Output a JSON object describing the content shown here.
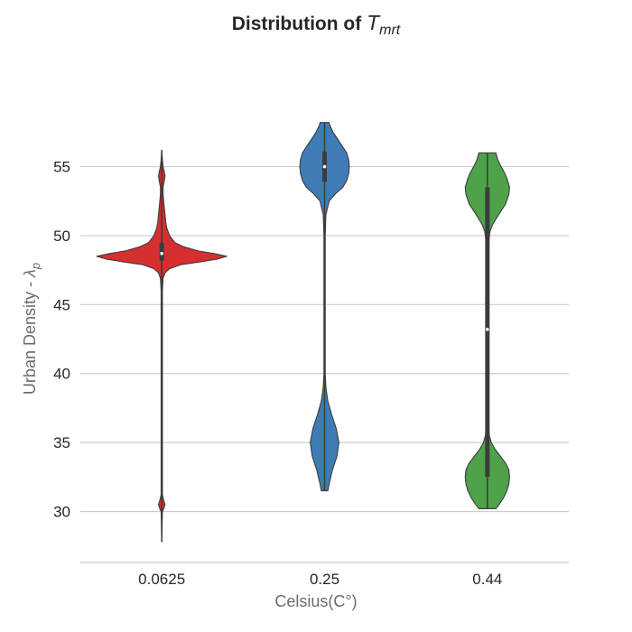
{
  "chart_data": {
    "type": "violin",
    "title_main": "Distribution of ",
    "title_math_base": "T",
    "title_math_sub": "mrt",
    "xlabel": "Celsius(C°)",
    "ylabel_text": "Urban Density - ",
    "ylabel_math_base": "λ",
    "ylabel_math_sub": "p",
    "ylim": [
      26.3,
      62.5
    ],
    "yticks": [
      30,
      35,
      40,
      45,
      50,
      55
    ],
    "grid": "horizontal",
    "categories": [
      "0.0625",
      "0.25",
      "0.44"
    ],
    "colors": [
      "#d62f2f",
      "#3f7cb5",
      "#4ea24a"
    ],
    "violins": [
      {
        "category": "0.0625",
        "range": [
          27.8,
          56.2
        ],
        "profile": [
          [
            27.8,
            0.0
          ],
          [
            30.0,
            0.01
          ],
          [
            30.2,
            0.03
          ],
          [
            30.5,
            0.05
          ],
          [
            30.8,
            0.03
          ],
          [
            31.2,
            0.01
          ],
          [
            34.0,
            0.01
          ],
          [
            46.0,
            0.01
          ],
          [
            46.9,
            0.02
          ],
          [
            47.3,
            0.05
          ],
          [
            47.6,
            0.12
          ],
          [
            47.9,
            0.3
          ],
          [
            48.1,
            0.6
          ],
          [
            48.3,
            0.85
          ],
          [
            48.5,
            1.0
          ],
          [
            48.7,
            0.8
          ],
          [
            48.9,
            0.55
          ],
          [
            49.2,
            0.33
          ],
          [
            49.5,
            0.2
          ],
          [
            50.0,
            0.12
          ],
          [
            50.5,
            0.08
          ],
          [
            51.0,
            0.06
          ],
          [
            51.5,
            0.05
          ],
          [
            52.0,
            0.04
          ],
          [
            52.5,
            0.03
          ],
          [
            53.0,
            0.02
          ],
          [
            53.5,
            0.02
          ],
          [
            54.0,
            0.04
          ],
          [
            54.3,
            0.05
          ],
          [
            54.6,
            0.04
          ],
          [
            55.0,
            0.02
          ],
          [
            55.5,
            0.01
          ],
          [
            56.2,
            0.0
          ]
        ],
        "box": {
          "q1": 48.2,
          "q3": 49.5,
          "median": 48.7,
          "whisker_low": 27.8,
          "whisker_high": 56.2
        }
      },
      {
        "category": "0.25",
        "range": [
          31.5,
          58.2
        ],
        "profile": [
          [
            31.5,
            0.05
          ],
          [
            32.0,
            0.07
          ],
          [
            33.0,
            0.12
          ],
          [
            34.0,
            0.19
          ],
          [
            35.0,
            0.22
          ],
          [
            36.0,
            0.18
          ],
          [
            37.0,
            0.11
          ],
          [
            38.0,
            0.05
          ],
          [
            39.0,
            0.02
          ],
          [
            40.0,
            0.01
          ],
          [
            50.0,
            0.01
          ],
          [
            51.5,
            0.02
          ],
          [
            52.5,
            0.07
          ],
          [
            53.0,
            0.16
          ],
          [
            53.5,
            0.28
          ],
          [
            54.0,
            0.34
          ],
          [
            54.5,
            0.37
          ],
          [
            55.0,
            0.38
          ],
          [
            55.5,
            0.37
          ],
          [
            56.0,
            0.34
          ],
          [
            56.5,
            0.27
          ],
          [
            57.0,
            0.2
          ],
          [
            57.5,
            0.13
          ],
          [
            58.0,
            0.08
          ],
          [
            58.2,
            0.07
          ]
        ],
        "box": {
          "q1": 53.9,
          "q3": 56.1,
          "median": 55.0,
          "whisker_low": 31.5,
          "whisker_high": 58.2
        }
      },
      {
        "category": "0.44",
        "range": [
          30.2,
          56.0
        ],
        "profile": [
          [
            30.2,
            0.13
          ],
          [
            30.5,
            0.18
          ],
          [
            31.0,
            0.25
          ],
          [
            31.5,
            0.3
          ],
          [
            32.0,
            0.33
          ],
          [
            32.5,
            0.34
          ],
          [
            33.0,
            0.33
          ],
          [
            33.5,
            0.28
          ],
          [
            34.0,
            0.2
          ],
          [
            34.5,
            0.12
          ],
          [
            35.0,
            0.06
          ],
          [
            35.5,
            0.03
          ],
          [
            36.0,
            0.02
          ],
          [
            38.0,
            0.01
          ],
          [
            48.0,
            0.01
          ],
          [
            49.5,
            0.02
          ],
          [
            50.3,
            0.04
          ],
          [
            50.8,
            0.08
          ],
          [
            51.5,
            0.17
          ],
          [
            52.3,
            0.28
          ],
          [
            53.0,
            0.33
          ],
          [
            53.5,
            0.34
          ],
          [
            54.0,
            0.31
          ],
          [
            54.5,
            0.27
          ],
          [
            55.0,
            0.21
          ],
          [
            55.5,
            0.16
          ],
          [
            56.0,
            0.13
          ]
        ],
        "box": {
          "q1": 32.5,
          "q3": 53.5,
          "median": 43.2,
          "whisker_low": 30.2,
          "whisker_high": 56.0
        }
      }
    ]
  }
}
